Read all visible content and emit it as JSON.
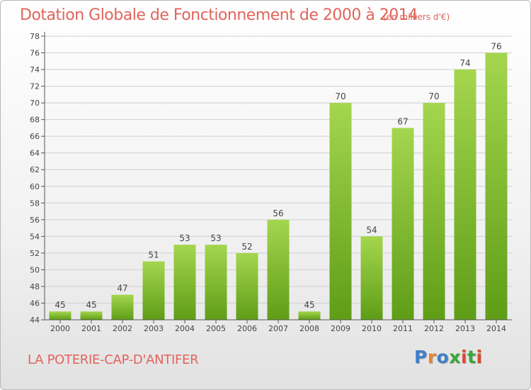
{
  "title": "Dotation Globale de Fonctionnement de 2000 à 2014",
  "subtitle": "(en milliers d'€)",
  "commune": "LA POTERIE-CAP-D'ANTIFER",
  "logo": {
    "letters": [
      "P",
      "r",
      "o",
      "x",
      "i",
      "t",
      "i"
    ],
    "colors": [
      "#3f7fc8",
      "#e8842a",
      "#3f7fc8",
      "#3aa83a",
      "#d84a32",
      "#3aa83a",
      "#d84a32"
    ]
  },
  "colors": {
    "bar_light": "#a4d64e",
    "bar_dark": "#5f9d17",
    "text": "#e0645b",
    "grid": "#cfcfcf",
    "axis": "#555555"
  },
  "chart_data": {
    "type": "bar",
    "categories": [
      "2000",
      "2001",
      "2002",
      "2003",
      "2004",
      "2005",
      "2006",
      "2007",
      "2008",
      "2009",
      "2010",
      "2011",
      "2012",
      "2013",
      "2014"
    ],
    "values": [
      45,
      45,
      47,
      51,
      53,
      53,
      52,
      56,
      45,
      70,
      54,
      67,
      70,
      74,
      76
    ],
    "data_labels": [
      "45",
      "45",
      "47",
      "51",
      "53",
      "53",
      "52",
      "56",
      "45",
      "70",
      "54",
      "67",
      "70",
      "74",
      "76"
    ],
    "y_ticks": [
      "44",
      "46",
      "48",
      "50",
      "52",
      "54",
      "56",
      "58",
      "60",
      "62",
      "64",
      "66",
      "68",
      "70",
      "72",
      "74",
      "76",
      "78"
    ],
    "ylim": [
      44,
      78
    ],
    "grid": true,
    "legend": "none"
  }
}
